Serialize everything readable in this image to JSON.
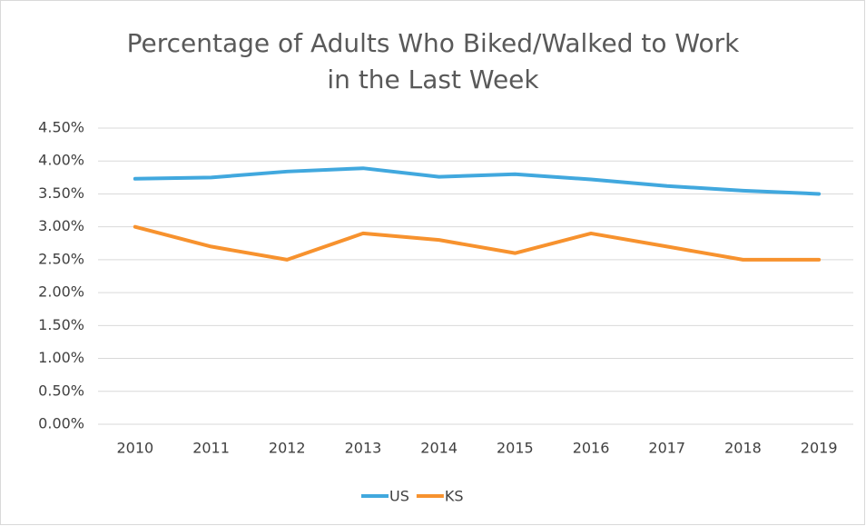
{
  "chart_data": {
    "type": "line",
    "title": "Percentage of Adults Who Biked/Walked to Work in the Last Week",
    "categories": [
      "2010",
      "2011",
      "2012",
      "2013",
      "2014",
      "2015",
      "2016",
      "2017",
      "2018",
      "2019"
    ],
    "series": [
      {
        "name": "US",
        "color": "#41a8de",
        "values": [
          3.73,
          3.75,
          3.84,
          3.89,
          3.76,
          3.8,
          3.72,
          3.62,
          3.55,
          3.5
        ]
      },
      {
        "name": "KS",
        "color": "#f7922e",
        "values": [
          3.0,
          2.7,
          2.5,
          2.9,
          2.8,
          2.6,
          2.9,
          2.7,
          2.5,
          2.5
        ]
      }
    ],
    "ylim": [
      0,
      4.5
    ],
    "yticks": [
      {
        "value": 0,
        "label": "0.00%"
      },
      {
        "value": 0.5,
        "label": "0.50%"
      },
      {
        "value": 1,
        "label": "1.00%"
      },
      {
        "value": 1.5,
        "label": "1.50%"
      },
      {
        "value": 2,
        "label": "2.00%"
      },
      {
        "value": 2.5,
        "label": "2.50%"
      },
      {
        "value": 3,
        "label": "3.00%"
      },
      {
        "value": 3.5,
        "label": "3.50%"
      },
      {
        "value": 4,
        "label": "4.00%"
      },
      {
        "value": 4.5,
        "label": "4.50%"
      }
    ],
    "grid": true,
    "legend": "bottom"
  }
}
